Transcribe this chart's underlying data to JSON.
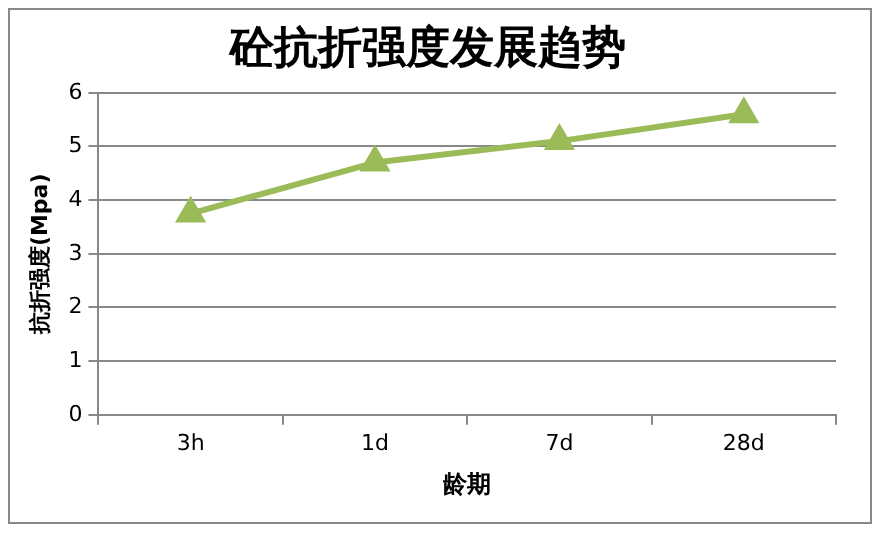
{
  "chart_data": {
    "type": "line",
    "title": "砼抗折强度发展趋势",
    "xlabel": "龄期",
    "ylabel": "抗折强度(Mpa)",
    "categories": [
      "3h",
      "1d",
      "7d",
      "28d"
    ],
    "series": [
      {
        "color": "#9bbb59",
        "values": [
          3.75,
          4.7,
          5.1,
          5.6
        ]
      }
    ],
    "ylim": [
      0,
      6
    ],
    "yticks": [
      0,
      1,
      2,
      3,
      4,
      5,
      6
    ],
    "grid": "y",
    "legend": false,
    "marker": "triangle",
    "line_style": "solid"
  }
}
